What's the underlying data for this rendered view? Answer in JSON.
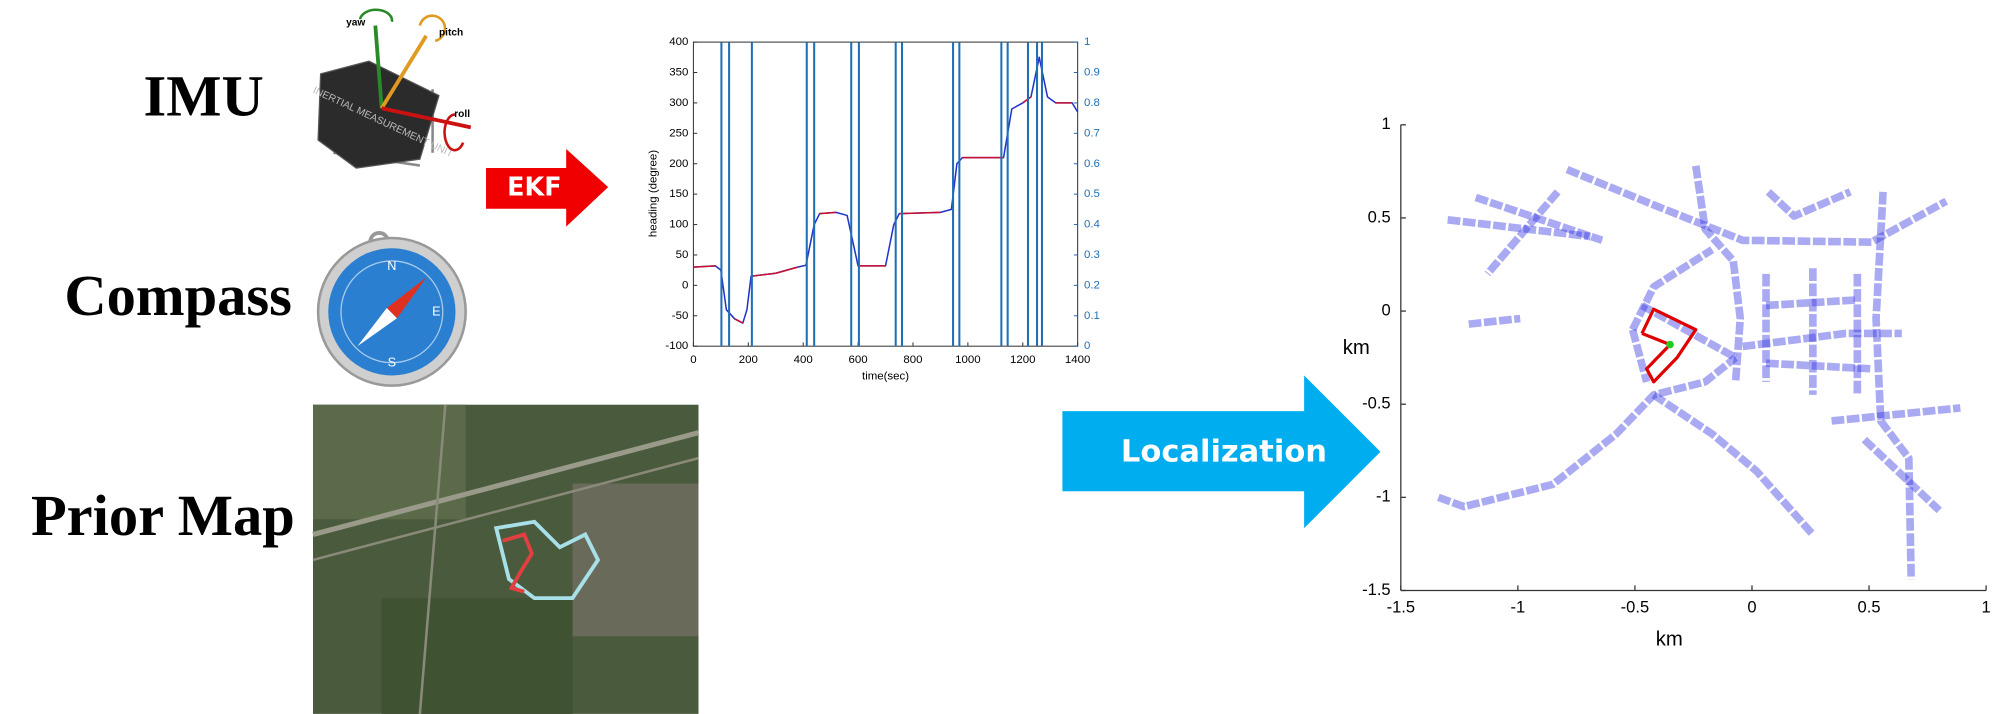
{
  "labels": {
    "imu": "IMU",
    "compass": "Compass",
    "prior_map": "Prior Map"
  },
  "arrows": {
    "ekf": "EKF",
    "localization": "Localization"
  },
  "heading_chart": {
    "type": "line",
    "xlabel": "time(sec)",
    "ylabel": "heading (degree)",
    "x": [
      0,
      80,
      100,
      120,
      150,
      180,
      195,
      210,
      300,
      380,
      410,
      440,
      460,
      520,
      560,
      600,
      700,
      730,
      750,
      900,
      940,
      960,
      980,
      1100,
      1130,
      1160,
      1200,
      1230,
      1260,
      1290,
      1320,
      1380,
      1400
    ],
    "series": [
      {
        "color": "#2233cc",
        "values": [
          30,
          32,
          25,
          -40,
          -55,
          -62,
          -40,
          15,
          20,
          30,
          33,
          100,
          118,
          120,
          115,
          32,
          32,
          100,
          118,
          120,
          125,
          200,
          210,
          210,
          210,
          290,
          300,
          310,
          375,
          310,
          300,
          300,
          285
        ]
      },
      {
        "color": "#c8102e",
        "values": [
          30,
          32,
          null,
          null,
          -55,
          -62,
          null,
          15,
          20,
          30,
          null,
          null,
          118,
          120,
          null,
          32,
          32,
          null,
          118,
          120,
          null,
          null,
          210,
          210,
          210,
          null,
          300,
          310,
          null,
          null,
          300,
          300,
          null
        ]
      }
    ],
    "events": [
      102,
      130,
      213,
      413,
      440,
      575,
      603,
      737,
      760,
      946,
      969,
      1122,
      1145,
      1219,
      1252,
      1270
    ],
    "event_color": "#1f6fb4",
    "xlim": [
      0,
      1400
    ],
    "xticks": [
      0,
      200,
      400,
      600,
      800,
      1000,
      1200,
      1400
    ],
    "ylim": [
      -100,
      400
    ],
    "yticks": [
      -100,
      -50,
      0,
      50,
      100,
      150,
      200,
      250,
      300,
      350,
      400
    ],
    "y2lim": [
      0,
      1
    ],
    "y2ticks": [
      0,
      0.1,
      0.2,
      0.3,
      0.4,
      0.5,
      0.6,
      0.7,
      0.8,
      0.9,
      1
    ]
  },
  "map_chart": {
    "type": "line",
    "xlabel": "km",
    "ylabel": "km",
    "xlim": [
      -1.5,
      1
    ],
    "xticks": [
      -1.5,
      -1,
      -0.5,
      0,
      0.5,
      1
    ],
    "ylim": [
      -1.5,
      1
    ],
    "yticks": [
      -1.5,
      -1,
      -0.5,
      0,
      0.5,
      1
    ],
    "road_color": "#2a2ae0",
    "roads": [
      {
        "x": [
          -1.3,
          -0.69
        ],
        "y": [
          0.49,
          0.4
        ]
      },
      {
        "x": [
          -1.18,
          -0.64
        ],
        "y": [
          0.61,
          0.38
        ]
      },
      {
        "x": [
          -0.83,
          -1.13
        ],
        "y": [
          0.64,
          0.2
        ]
      },
      {
        "x": [
          -0.79,
          -0.42,
          -0.04,
          0.51,
          0.83
        ],
        "y": [
          0.76,
          0.57,
          0.38,
          0.37,
          0.59
        ]
      },
      {
        "x": [
          -0.24,
          -0.2,
          -0.08,
          -0.05,
          -0.07
        ],
        "y": [
          0.78,
          0.44,
          0.27,
          -0.04,
          -0.38
        ]
      },
      {
        "x": [
          -1.34,
          -1.23,
          -0.85,
          -0.58,
          -0.42,
          -0.2,
          -0.07
        ],
        "y": [
          -1.0,
          -1.05,
          -0.93,
          -0.66,
          -0.45,
          -0.38,
          -0.25
        ]
      },
      {
        "x": [
          -0.42,
          -0.17,
          0.02,
          0.26
        ],
        "y": [
          -0.45,
          -0.66,
          -0.86,
          -1.2
        ]
      },
      {
        "x": [
          -0.04,
          0.4,
          0.64
        ],
        "y": [
          -0.19,
          -0.12,
          -0.12
        ]
      },
      {
        "x": [
          0.56,
          0.53,
          0.55,
          0.67,
          0.68
        ],
        "y": [
          0.64,
          -0.04,
          -0.59,
          -0.79,
          -1.44
        ]
      },
      {
        "x": [
          -1.21,
          -0.99
        ],
        "y": [
          -0.07,
          -0.04
        ]
      },
      {
        "x": [
          0.06,
          0.06
        ],
        "y": [
          0.2,
          -0.38
        ]
      },
      {
        "x": [
          0.26,
          0.26
        ],
        "y": [
          0.23,
          -0.45
        ]
      },
      {
        "x": [
          0.45,
          0.45
        ],
        "y": [
          0.2,
          -0.45
        ]
      },
      {
        "x": [
          0.06,
          0.45
        ],
        "y": [
          0.03,
          0.06
        ]
      },
      {
        "x": [
          0.06,
          0.51
        ],
        "y": [
          -0.28,
          -0.31
        ]
      },
      {
        "x": [
          0.34,
          0.89
        ],
        "y": [
          -0.59,
          -0.52
        ]
      },
      {
        "x": [
          0.48,
          0.8
        ],
        "y": [
          -0.69,
          -1.07
        ]
      },
      {
        "x": [
          0.07,
          0.18,
          0.42
        ],
        "y": [
          0.64,
          0.51,
          0.64
        ]
      },
      {
        "x": [
          -0.51,
          -0.45
        ],
        "y": [
          -0.1,
          -0.38
        ]
      },
      {
        "x": [
          -0.51,
          -0.42,
          -0.17
        ],
        "y": [
          -0.1,
          0.13,
          0.33
        ]
      },
      {
        "x": [
          -0.47,
          -0.07
        ],
        "y": [
          0.03,
          -0.25
        ]
      }
    ],
    "path": {
      "color": "#e00000",
      "x": [
        -0.47,
        -0.42,
        -0.24,
        -0.32,
        -0.42,
        -0.45,
        -0.35,
        -0.47
      ],
      "y": [
        -0.12,
        0.01,
        -0.1,
        -0.25,
        -0.38,
        -0.31,
        -0.18,
        -0.12
      ]
    },
    "position": {
      "color": "#22cc22",
      "x": -0.35,
      "y": -0.18
    }
  }
}
